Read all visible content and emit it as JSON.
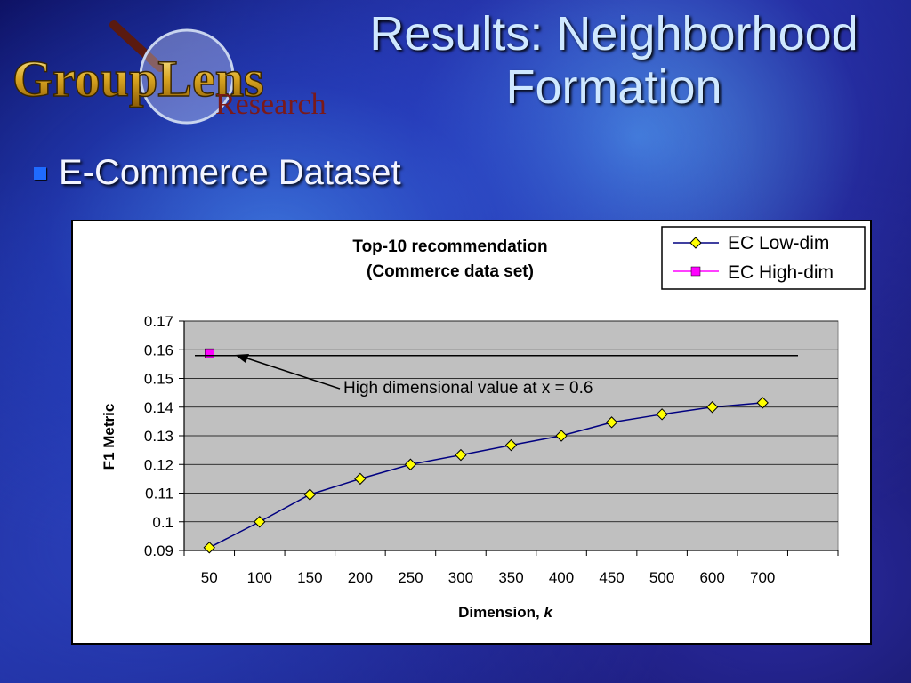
{
  "logo": {
    "name": "GroupLens",
    "subtitle": "Research"
  },
  "slide": {
    "title_line1": "Results: Neighborhood",
    "title_line2": "Formation",
    "bullet": "E-Commerce Dataset"
  },
  "annotation": "High dimensional value at x = 0.6",
  "colors": {
    "low_line": "#000080",
    "low_marker": "#FFFF00",
    "high": "#FF00FF",
    "plot_bg": "#C0C0C0"
  },
  "chart_data": {
    "type": "line",
    "title_line1": "Top-10 recommendation",
    "title_line2": "(Commerce data set)",
    "xlabel": "Dimension, ",
    "xlabel_italic": "k",
    "ylabel": "F1 Metric",
    "categories": [
      "50",
      "100",
      "150",
      "200",
      "250",
      "300",
      "350",
      "400",
      "450",
      "500",
      "600",
      "700"
    ],
    "ylim": [
      0.09,
      0.17
    ],
    "yticks": [
      "0.09",
      "0.1",
      "0.11",
      "0.12",
      "0.13",
      "0.14",
      "0.15",
      "0.16",
      "0.17"
    ],
    "grid": true,
    "legend_position": "top-right",
    "series": [
      {
        "name": "EC Low-dim",
        "marker": "diamond",
        "values": [
          0.091,
          0.1,
          0.1095,
          0.115,
          0.12,
          0.1233,
          0.1267,
          0.13,
          0.1347,
          0.1375,
          0.14,
          0.1415
        ]
      },
      {
        "name": "EC High-dim",
        "marker": "square",
        "values": [
          0.1588,
          null,
          null,
          null,
          null,
          null,
          null,
          null,
          null,
          null,
          null,
          null
        ]
      }
    ],
    "reference_line": {
      "y": 0.158
    }
  }
}
